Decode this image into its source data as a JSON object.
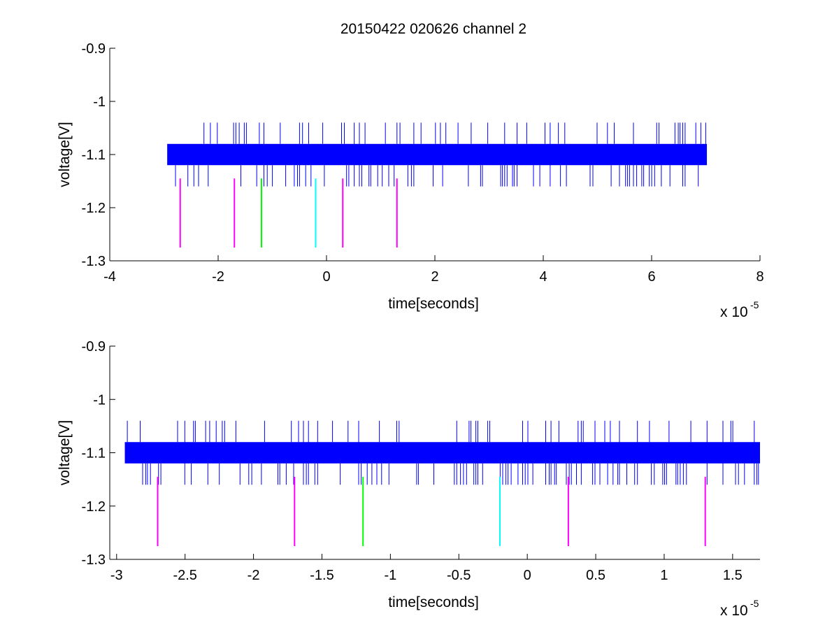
{
  "figure": {
    "title": "20150422 020626 channel 2"
  },
  "chart_data": [
    {
      "type": "line",
      "title": "20150422 020626 channel 2",
      "xlabel": "time[seconds]",
      "ylabel": "voltage[V]",
      "x_exponent_label": "x 10",
      "x_exponent": "-5",
      "xlim": [
        -4,
        8
      ],
      "ylim": [
        -1.3,
        -0.9
      ],
      "xticks": [
        -4,
        -2,
        0,
        2,
        4,
        6,
        8
      ],
      "xtick_labels": [
        "-4",
        "-2",
        "0",
        "2",
        "4",
        "6",
        "8"
      ],
      "yticks": [
        -1.3,
        -1.2,
        -1.1,
        -1,
        -0.9
      ],
      "ytick_labels": [
        "-1.3",
        "-1.2",
        "-1.1",
        "-1",
        "-0.9"
      ],
      "grid": false,
      "legend": "none",
      "series": [
        {
          "color": "#0000ff",
          "x_range": [
            -2.94,
            7.02
          ],
          "baseline_band": [
            -1.12,
            -1.08
          ],
          "spike_high": -1.04,
          "spike_low": -1.16
        }
      ],
      "markers": [
        {
          "x": -2.7,
          "color": "#ff00ff",
          "y": [
            -1.275,
            -1.145
          ]
        },
        {
          "x": -1.7,
          "color": "#ff00ff",
          "y": [
            -1.275,
            -1.145
          ]
        },
        {
          "x": -1.2,
          "color": "#00ff00",
          "y": [
            -1.275,
            -1.145
          ]
        },
        {
          "x": -0.2,
          "color": "#00ffff",
          "y": [
            -1.275,
            -1.145
          ]
        },
        {
          "x": 0.3,
          "color": "#ff00ff",
          "y": [
            -1.275,
            -1.145
          ]
        },
        {
          "x": 1.3,
          "color": "#ff00ff",
          "y": [
            -1.275,
            -1.145
          ]
        }
      ]
    },
    {
      "type": "line",
      "title": "",
      "xlabel": "time[seconds]",
      "ylabel": "voltage[V]",
      "x_exponent_label": "x 10",
      "x_exponent": "-5",
      "xlim": [
        -3.05,
        1.7
      ],
      "ylim": [
        -1.3,
        -0.9
      ],
      "xticks": [
        -3,
        -2.5,
        -2,
        -1.5,
        -1,
        -0.5,
        0,
        0.5,
        1,
        1.5
      ],
      "xtick_labels": [
        "-3",
        "-2.5",
        "-2",
        "-1.5",
        "-1",
        "-0.5",
        "0",
        "0.5",
        "1",
        "1.5"
      ],
      "yticks": [
        -1.3,
        -1.2,
        -1.1,
        -1,
        -0.9
      ],
      "ytick_labels": [
        "-1.3",
        "-1.2",
        "-1.1",
        "-1",
        "-0.9"
      ],
      "grid": false,
      "legend": "none",
      "series": [
        {
          "color": "#0000ff",
          "x_range": [
            -2.94,
            1.7
          ],
          "baseline_band": [
            -1.12,
            -1.08
          ],
          "spike_high": -1.04,
          "spike_low": -1.16
        }
      ],
      "markers": [
        {
          "x": -2.7,
          "color": "#ff00ff",
          "y": [
            -1.275,
            -1.145
          ]
        },
        {
          "x": -1.7,
          "color": "#ff00ff",
          "y": [
            -1.275,
            -1.145
          ]
        },
        {
          "x": -1.2,
          "color": "#00ff00",
          "y": [
            -1.275,
            -1.145
          ]
        },
        {
          "x": -0.2,
          "color": "#00ffff",
          "y": [
            -1.275,
            -1.145
          ]
        },
        {
          "x": 0.3,
          "color": "#ff00ff",
          "y": [
            -1.275,
            -1.145
          ]
        },
        {
          "x": 1.3,
          "color": "#ff00ff",
          "y": [
            -1.275,
            -1.145
          ]
        }
      ]
    }
  ]
}
